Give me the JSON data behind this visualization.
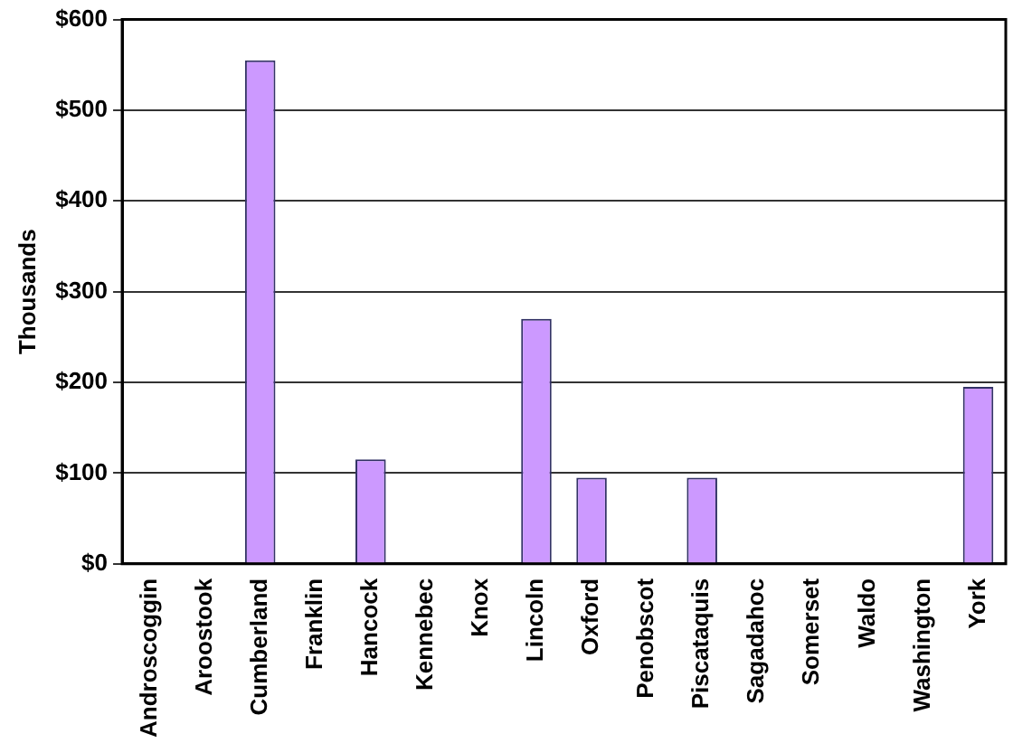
{
  "chart_data": {
    "type": "bar",
    "ylabel": "Thousands",
    "categories": [
      "Androscoggin",
      "Aroostook",
      "Cumberland",
      "Franklin",
      "Hancock",
      "Kennebec",
      "Knox",
      "Lincoln",
      "Oxford",
      "Penobscot",
      "Piscataquis",
      "Sagadahoc",
      "Somerset",
      "Waldo",
      "Washington",
      "York"
    ],
    "values": [
      0,
      0,
      555,
      0,
      115,
      0,
      0,
      270,
      95,
      0,
      95,
      0,
      0,
      0,
      0,
      195
    ],
    "color": "#cc99ff",
    "ylim": [
      0,
      600
    ],
    "yticks": [
      {
        "value": 0,
        "label": "$0"
      },
      {
        "value": 100,
        "label": "$100"
      },
      {
        "value": 200,
        "label": "$200"
      },
      {
        "value": 300,
        "label": "$300"
      },
      {
        "value": 400,
        "label": "$400"
      },
      {
        "value": 500,
        "label": "$500"
      },
      {
        "value": 600,
        "label": "$600"
      }
    ],
    "grid": "y",
    "legend": false
  }
}
